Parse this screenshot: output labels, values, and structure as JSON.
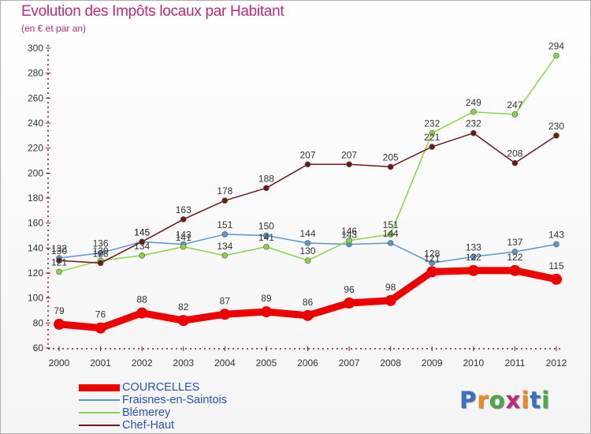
{
  "title": "Evolution des Impôts locaux par Habitant",
  "subtitle": "(en € et par an)",
  "logo": {
    "text": "Proxiti",
    "colors": [
      "#3a6fc4",
      "#f08a1c",
      "#4aa84a",
      "#c0287a",
      "#f08a1c",
      "#3a6fc4",
      "#4aa84a"
    ]
  },
  "chart_data": {
    "type": "line",
    "x": [
      "2000",
      "2001",
      "2002",
      "2003",
      "2004",
      "2005",
      "2006",
      "2007",
      "2008",
      "2009",
      "2010",
      "2011",
      "2012"
    ],
    "ylim": [
      60,
      300
    ],
    "yticks": [
      60,
      80,
      100,
      120,
      140,
      160,
      180,
      200,
      220,
      240,
      260,
      280,
      300
    ],
    "grid": false,
    "legend": "bottom-left",
    "series": [
      {
        "name": "COURCELLES",
        "color": "#ee0000",
        "width": 9,
        "marker": 7,
        "values": [
          79,
          76,
          88,
          82,
          87,
          89,
          86,
          96,
          98,
          121,
          122,
          122,
          115
        ]
      },
      {
        "name": "Fraisnes-en-Saintois",
        "color": "#5a96cc",
        "width": 1.5,
        "marker": 3.5,
        "values": [
          132,
          136,
          145,
          143,
          151,
          150,
          144,
          143,
          144,
          128,
          133,
          137,
          143
        ]
      },
      {
        "name": "Blémerey",
        "color": "#8ad44a",
        "width": 1.5,
        "marker": 3.5,
        "values": [
          121,
          130,
          134,
          141,
          134,
          141,
          130,
          146,
          151,
          232,
          249,
          247,
          294
        ]
      },
      {
        "name": "Chef-Haut",
        "color": "#6b1a1a",
        "width": 1.5,
        "marker": 3.5,
        "values": [
          130,
          128,
          145,
          163,
          178,
          188,
          207,
          207,
          205,
          221,
          232,
          208,
          230
        ]
      }
    ]
  }
}
